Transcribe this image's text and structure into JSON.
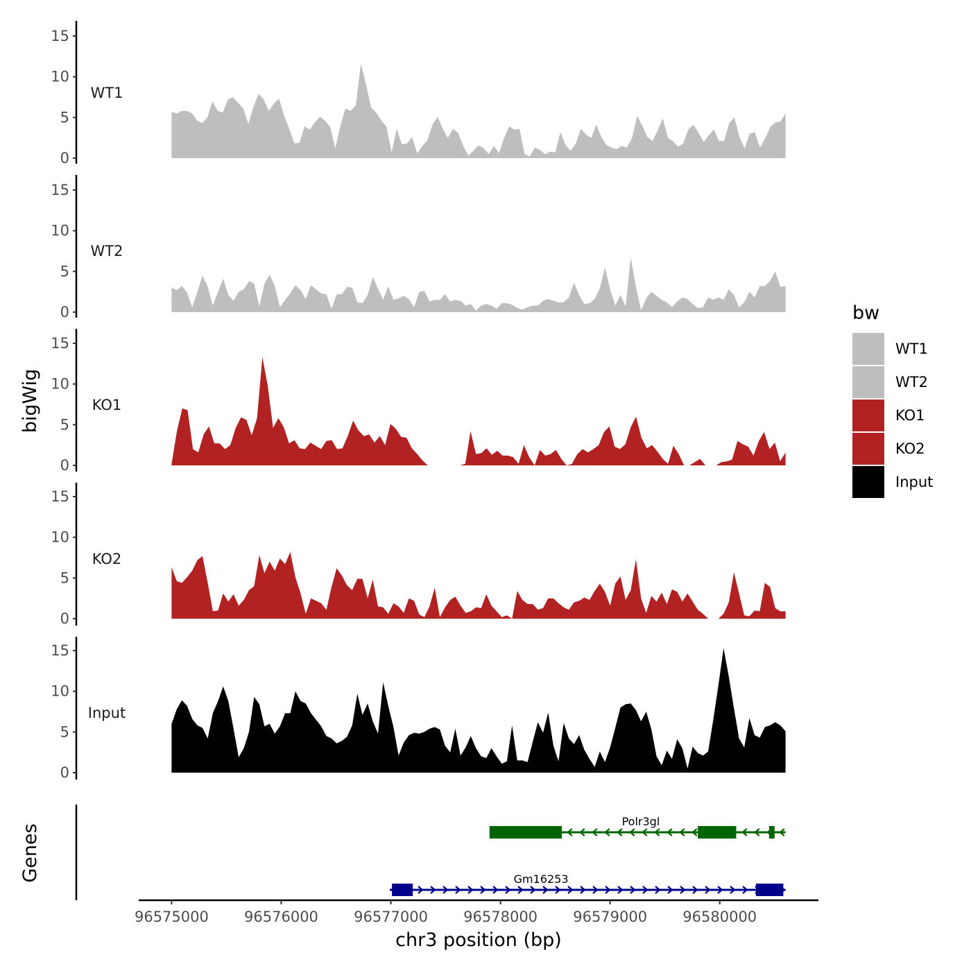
{
  "chart_data": {
    "type": "area",
    "y_axis_title": "bigWig",
    "genes_axis_title": "Genes",
    "x_axis_title": "chr3 position (bp)",
    "xlim": [
      96574700,
      96580900
    ],
    "ylim": [
      0,
      16
    ],
    "y_ticks": [
      0,
      5,
      10,
      15
    ],
    "x_ticks": [
      96575000,
      96576000,
      96577000,
      96578000,
      96579000,
      96580000
    ],
    "x_tick_labels": [
      "96575000",
      "96576000",
      "96577000",
      "96578000",
      "96579000",
      "96580000"
    ],
    "x_range_data": [
      96575000,
      96580600
    ],
    "legend": {
      "title": "bw",
      "items": [
        {
          "label": "WT1",
          "color": "#bebebe"
        },
        {
          "label": "WT2",
          "color": "#bebebe"
        },
        {
          "label": "KO1",
          "color": "#b22222"
        },
        {
          "label": "KO2",
          "color": "#b22222"
        },
        {
          "label": "Input",
          "color": "#000000"
        }
      ]
    },
    "tracks": [
      {
        "name": "WT1",
        "color": "#bebebe",
        "values": [
          5.7,
          5.5,
          5.8,
          5.8,
          5.5,
          4.6,
          4.3,
          5.0,
          7.0,
          5.8,
          5.6,
          7.2,
          7.5,
          6.8,
          6.1,
          4.2,
          6.3,
          7.9,
          7.2,
          5.8,
          6.7,
          7.3,
          5.2,
          3.6,
          1.8,
          1.9,
          3.9,
          3.5,
          4.4,
          5.1,
          4.6,
          3.8,
          1.2,
          4.0,
          6.1,
          5.8,
          6.5,
          11.6,
          9.1,
          6.2,
          5.6,
          4.6,
          3.9,
          0.7,
          3.6,
          1.7,
          1.8,
          2.6,
          0.6,
          1.5,
          2.2,
          4.1,
          5.1,
          3.6,
          2.5,
          3.6,
          3.1,
          1.5,
          0.3,
          0.9,
          1.6,
          1.2,
          0.5,
          1.5,
          0.6,
          2.5,
          3.9,
          3.5,
          3.6,
          0.5,
          0.2,
          1.3,
          1.0,
          0.5,
          0.8,
          0.7,
          3.2,
          1.6,
          0.9,
          1.8,
          3.6,
          2.9,
          2.5,
          4.1,
          2.6,
          1.6,
          1.3,
          1.1,
          1.5,
          1.3,
          2.5,
          5.2,
          4.0,
          2.6,
          2.1,
          3.4,
          4.9,
          2.5,
          2.1,
          1.4,
          1.8,
          3.5,
          4.1,
          3.1,
          2.0,
          2.8,
          3.5,
          2.1,
          2.1,
          4.3,
          5.0,
          2.6,
          1.2,
          3.0,
          3.2,
          1.3,
          2.4,
          3.8,
          4.4,
          4.5,
          5.5
        ],
        "label_y": 8.0
      },
      {
        "name": "WT2",
        "color": "#bebebe",
        "values": [
          3.0,
          2.7,
          3.2,
          2.4,
          0.6,
          2.5,
          4.5,
          3.1,
          0.8,
          2.5,
          4.1,
          2.1,
          1.4,
          2.5,
          2.8,
          3.8,
          3.5,
          0.7,
          3.5,
          4.6,
          3.2,
          0.6,
          1.5,
          2.3,
          3.3,
          2.7,
          1.6,
          3.3,
          2.8,
          2.3,
          2.2,
          0.4,
          2.2,
          2.2,
          3.1,
          3.0,
          1.2,
          1.1,
          2.1,
          4.3,
          2.9,
          1.5,
          3.2,
          1.5,
          1.7,
          2.0,
          1.6,
          0.6,
          2.5,
          2.6,
          1.3,
          1.5,
          1.5,
          2.2,
          1.3,
          1.5,
          1.4,
          0.8,
          1.0,
          0.2,
          0.8,
          1.0,
          0.8,
          0.4,
          1.1,
          1.1,
          0.9,
          0.5,
          0.3,
          0.6,
          0.8,
          0.8,
          1.4,
          1.6,
          1.4,
          1.2,
          1.2,
          1.8,
          3.6,
          2.1,
          1.0,
          1.1,
          1.6,
          2.9,
          5.5,
          2.8,
          0.8,
          2.1,
          0.7,
          6.7,
          3.1,
          0.2,
          1.7,
          2.5,
          2.0,
          1.5,
          1.2,
          0.6,
          1.3,
          1.8,
          1.6,
          1.0,
          0.5,
          0.6,
          1.8,
          1.5,
          1.8,
          1.5,
          2.8,
          2.1,
          0.6,
          1.2,
          2.5,
          1.8,
          3.2,
          3.2,
          3.8,
          5.0,
          3.1,
          3.2
        ]
      },
      {
        "name": "KO1",
        "color": "#b22222",
        "values": [
          0.2,
          4.2,
          7.0,
          6.8,
          2.0,
          1.6,
          3.8,
          4.8,
          2.7,
          2.7,
          2.0,
          2.5,
          4.6,
          5.9,
          5.6,
          3.7,
          5.8,
          13.3,
          9.8,
          4.6,
          5.8,
          4.7,
          2.7,
          3.1,
          2.1,
          2.0,
          2.8,
          2.4,
          2.0,
          3.0,
          3.1,
          2.0,
          2.1,
          3.6,
          5.5,
          4.3,
          3.6,
          3.8,
          2.8,
          3.6,
          2.5,
          5.1,
          4.5,
          3.5,
          3.4,
          2.1,
          1.4,
          0.6,
          0.0,
          0.0,
          0.0,
          0.0,
          0.0,
          0.0,
          0.0,
          0.2,
          4.2,
          1.4,
          1.5,
          2.1,
          1.3,
          1.8,
          1.2,
          1.2,
          1.0,
          0.2,
          2.5,
          1.0,
          0.0,
          1.9,
          1.2,
          1.4,
          1.9,
          0.8,
          0.0,
          0.2,
          1.4,
          2.0,
          1.6,
          2.0,
          2.5,
          4.1,
          4.8,
          2.3,
          2.0,
          2.6,
          4.7,
          6.0,
          3.4,
          2.1,
          2.5,
          1.7,
          0.8,
          0.2,
          2.4,
          1.4,
          0.0,
          0.0,
          0.4,
          0.8,
          0.0,
          0.0,
          0.0,
          0.4,
          0.5,
          0.7,
          3.0,
          2.6,
          2.3,
          1.2,
          3.0,
          4.1,
          2.0,
          2.8,
          0.5,
          1.6
        ]
      },
      {
        "name": "KO2",
        "color": "#b22222",
        "values": [
          6.3,
          4.6,
          4.4,
          5.1,
          5.9,
          7.2,
          7.7,
          4.4,
          0.9,
          1.0,
          3.1,
          2.1,
          3.0,
          1.6,
          2.3,
          3.5,
          4.0,
          7.8,
          5.6,
          7.0,
          5.9,
          7.4,
          6.7,
          8.2,
          5.1,
          3.1,
          0.6,
          2.5,
          2.2,
          1.9,
          1.1,
          3.9,
          6.2,
          5.3,
          4.1,
          3.5,
          4.9,
          4.9,
          2.5,
          4.8,
          1.5,
          1.4,
          0.6,
          1.9,
          1.5,
          0.7,
          2.5,
          2.2,
          0.5,
          0.2,
          1.5,
          3.8,
          0.2,
          1.4,
          2.3,
          2.7,
          1.6,
          0.7,
          0.9,
          1.4,
          1.3,
          3.0,
          1.6,
          0.9,
          0.2,
          0.4,
          0.0,
          3.4,
          2.3,
          1.8,
          1.8,
          1.1,
          1.3,
          2.5,
          2.5,
          1.9,
          1.4,
          1.1,
          2.0,
          2.2,
          2.6,
          2.3,
          3.4,
          4.3,
          3.3,
          1.6,
          4.3,
          5.2,
          2.3,
          3.5,
          7.3,
          2.5,
          0.7,
          2.8,
          2.1,
          3.2,
          1.8,
          3.6,
          3.3,
          2.1,
          3.1,
          2.1,
          1.1,
          0.6,
          0.0,
          0.0,
          0.0,
          0.6,
          2.0,
          5.7,
          3.1,
          0.4,
          0.3,
          1.0,
          0.9,
          4.4,
          3.9,
          1.3,
          0.9,
          0.9
        ]
      },
      {
        "name": "Input",
        "color": "#000000",
        "values": [
          6.0,
          7.8,
          8.9,
          8.2,
          6.6,
          5.8,
          5.5,
          4.2,
          7.3,
          8.8,
          10.6,
          8.8,
          5.4,
          1.9,
          3.0,
          5.0,
          9.3,
          8.4,
          5.7,
          6.0,
          4.8,
          5.7,
          7.3,
          7.3,
          10.0,
          8.8,
          8.5,
          7.3,
          6.5,
          5.7,
          4.5,
          4.2,
          3.6,
          3.9,
          4.4,
          5.8,
          9.7,
          7.1,
          8.5,
          6.3,
          4.8,
          11.1,
          8.2,
          5.6,
          2.1,
          3.7,
          4.6,
          4.9,
          4.8,
          5.0,
          5.4,
          5.6,
          5.3,
          3.3,
          2.5,
          5.4,
          2.1,
          3.1,
          4.5,
          3.0,
          2.0,
          1.8,
          3.0,
          2.0,
          1.1,
          1.4,
          5.8,
          1.5,
          1.5,
          1.3,
          3.8,
          6.2,
          4.9,
          7.4,
          3.3,
          1.4,
          6.1,
          4.2,
          3.5,
          4.6,
          2.8,
          1.7,
          0.7,
          2.6,
          1.3,
          3.1,
          5.5,
          8.0,
          8.4,
          8.5,
          7.7,
          6.3,
          7.5,
          5.3,
          2.0,
          0.9,
          2.7,
          1.7,
          4.1,
          3.0,
          0.5,
          3.2,
          2.4,
          2.1,
          2.6,
          6.5,
          10.8,
          15.3,
          11.8,
          7.9,
          4.2,
          3.1,
          6.7,
          4.6,
          4.3,
          5.6,
          5.8,
          6.2,
          5.8,
          5.1
        ]
      }
    ],
    "genes": [
      {
        "name": "Polr3gl",
        "strand": "-",
        "color": "#006400",
        "row": 1,
        "start": 96577900,
        "end": 96580600,
        "label_pos": 96579280,
        "exons": [
          [
            96577900,
            96578560
          ],
          [
            96579800,
            96580150
          ],
          [
            96580450,
            96580500
          ]
        ]
      },
      {
        "name": "Gm16253",
        "strand": "+",
        "color": "#00008b",
        "row": 2,
        "start": 96576990,
        "end": 96580600,
        "label_pos": 96578370,
        "exons": [
          [
            96577010,
            96577200
          ],
          [
            96580330,
            96580580
          ]
        ]
      }
    ]
  }
}
